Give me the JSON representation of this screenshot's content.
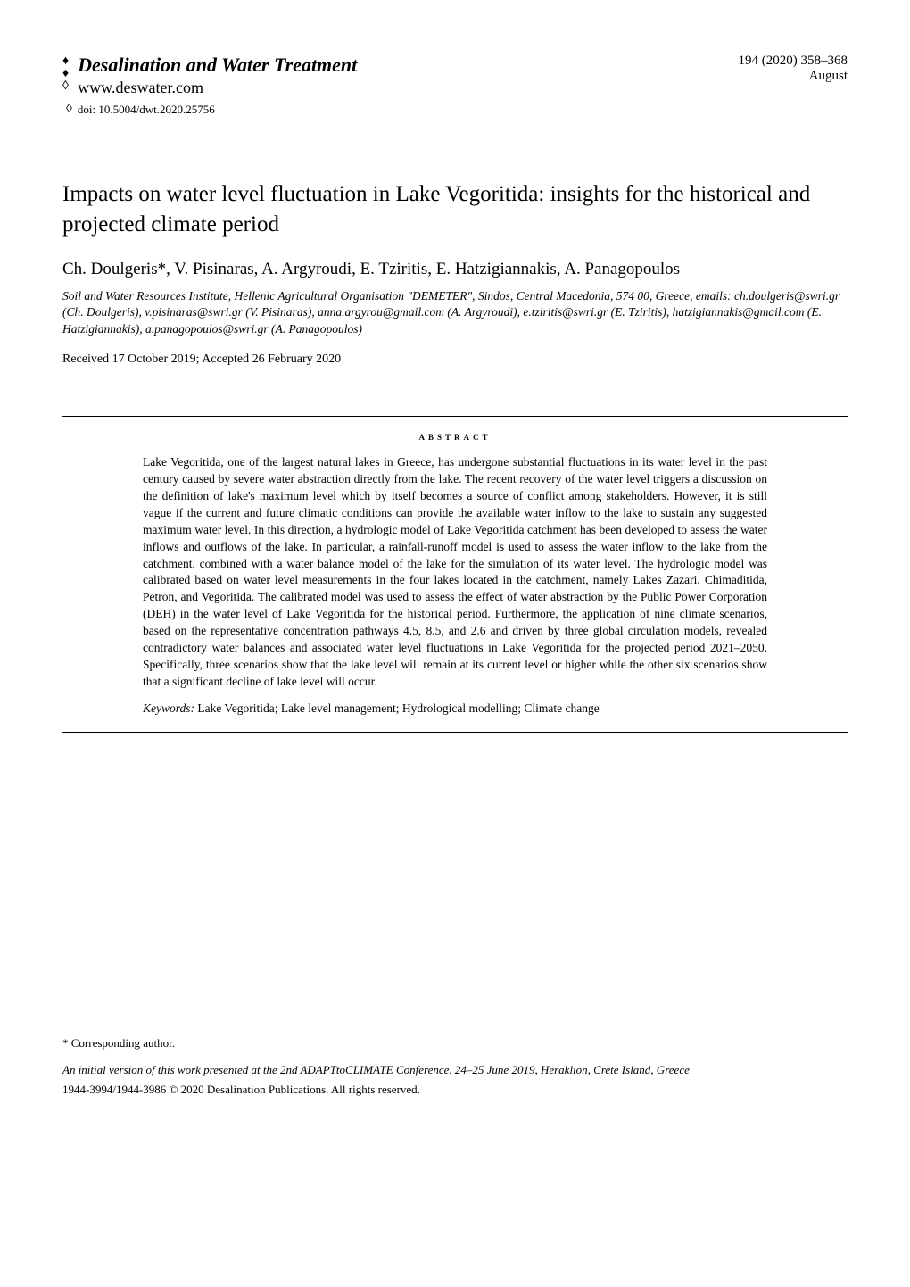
{
  "journal": {
    "title": "Desalination and Water Treatment",
    "url": "www.deswater.com",
    "doi": "doi: 10.5004/dwt.2020.25756"
  },
  "issue": {
    "citation": "194 (2020) 358–368",
    "month": "August"
  },
  "article": {
    "title": "Impacts on water level fluctuation in Lake Vegoritida: insights for the historical and projected climate period",
    "authors": "Ch. Doulgeris*, V. Pisinaras, A. Argyroudi, E. Tziritis, E. Hatzigiannakis, A. Panagopoulos",
    "affiliation": "Soil and Water Resources Institute, Hellenic Agricultural Organisation \"DEMETER\", Sindos, Central Macedonia, 574 00, Greece, emails: ch.doulgeris@swri.gr (Ch. Doulgeris), v.pisinaras@swri.gr (V. Pisinaras), anna.argyrou@gmail.com (A. Argyroudi), e.tziritis@swri.gr (E. Tziritis), hatzigiannakis@gmail.com (E. Hatzigiannakis), a.panagopoulos@swri.gr (A. Panagopoulos)",
    "received": "Received 17 October 2019; Accepted 26 February 2020"
  },
  "abstract": {
    "heading": "abstract",
    "body": "Lake Vegoritida, one of the largest natural lakes in Greece, has undergone substantial fluctuations in its water level in the past century caused by severe water abstraction directly from the lake. The recent recovery of the water level triggers a discussion on the definition of lake's maximum level which by itself becomes a source of conflict among stakeholders. However, it is still vague if the current and future climatic conditions can provide the available water inflow to the lake to sustain any suggested maximum water level. In this direction, a hydrologic model of Lake Vegoritida catchment has been developed to assess the water inflows and outflows of the lake. In particular, a rainfall-runoff model is used to assess the water inflow to the lake from the catchment, combined with a water balance model of the lake for the simulation of its water level. The hydrologic model was calibrated based on water level measurements in the four lakes located in the catchment, namely Lakes Zazari, Chimaditida, Petron, and Vegoritida. The calibrated model was used to assess the effect of water abstraction by the Public Power Corporation (DEH) in the water level of Lake Vegoritida for the historical period. Furthermore, the application of nine climate scenarios, based on the representative concentration pathways 4.5, 8.5, and 2.6 and driven by three global circulation models, revealed contradictory water balances and associated water level fluctuations in Lake Vegoritida for the projected period 2021–2050. Specifically, three scenarios show that the lake level will remain at its current level or higher while the other six scenarios show that a significant decline of lake level will occur.",
    "keywords_label": "Keywords:",
    "keywords": " Lake Vegoritida; Lake level management; Hydrological modelling; Climate change"
  },
  "footer": {
    "corresponding": "* Corresponding author.",
    "conference_note": "An initial version of this work presented at the 2nd ADAPTtoCLIMATE Conference, 24–25 June 2019, Heraklion, Crete Island, Greece",
    "copyright": "1944-3994/1944-3986 © 2020 Desalination Publications. All rights reserved."
  },
  "icons": {
    "droplet_filled": "♦",
    "droplet_outline": "◊"
  }
}
